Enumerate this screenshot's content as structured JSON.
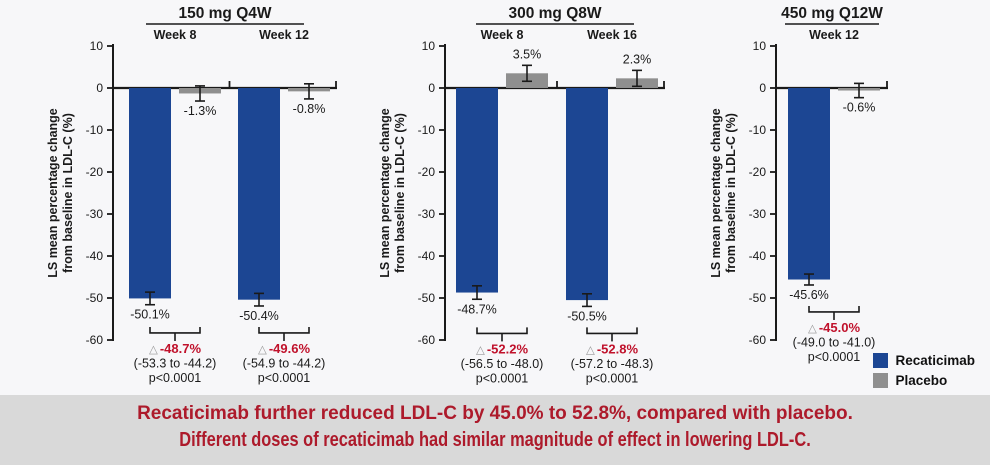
{
  "figure": {
    "caption": {
      "line1": "Recaticimab further reduced LDL-C by 45.0% to 52.8%, compared with placebo.",
      "line2": "Different doses of recaticimab had similar magnitude of effect in lowering LDL-C."
    }
  },
  "chart_data": {
    "type": "bar",
    "ylabel": [
      "LS mean percentage change",
      "from baseline in LDL-C (%)"
    ],
    "ylim": [
      10,
      -60
    ],
    "yticks": [
      10,
      0,
      -10,
      -20,
      -30,
      -40,
      -50,
      -60
    ],
    "grid": "off",
    "legend_position": "bottom-right",
    "colors": {
      "recaticimab": "#1C4693",
      "placebo": "#8F8F8F",
      "axis": "#1A1A1A",
      "diff_red": "#C0112B",
      "caption_red": "#AD1A2B",
      "caption_bg": "#D9D9D9",
      "triangle_gray": "#9A9A9A"
    },
    "legend": [
      {
        "label": "Recaticimab",
        "color": "#1C4693"
      },
      {
        "label": "Placebo",
        "color": "#8F8F8F"
      }
    ],
    "panels": [
      {
        "title": "150 mg Q4W",
        "groups": [
          {
            "week": "Week 8",
            "recaticimab": {
              "value": -50.1,
              "label": "-50.1%",
              "err": 1.5
            },
            "placebo": {
              "value": -1.3,
              "label": "-1.3%",
              "err": 1.8
            },
            "difference": {
              "delta": "-48.7%",
              "ci": "(-53.3 to -44.2)",
              "p": "p<0.0001"
            }
          },
          {
            "week": "Week 12",
            "recaticimab": {
              "value": -50.4,
              "label": "-50.4%",
              "err": 1.5
            },
            "placebo": {
              "value": -0.8,
              "label": "-0.8%",
              "err": 1.8
            },
            "difference": {
              "delta": "-49.6%",
              "ci": "(-54.9 to -44.2)",
              "p": "p<0.0001"
            }
          }
        ]
      },
      {
        "title": "300 mg Q8W",
        "groups": [
          {
            "week": "Week 8",
            "recaticimab": {
              "value": -48.7,
              "label": "-48.7%",
              "err": 1.6
            },
            "placebo": {
              "value": 3.5,
              "label": "3.5%",
              "err": 1.9
            },
            "difference": {
              "delta": "-52.2%",
              "ci": "(-56.5 to -48.0)",
              "p": "p<0.0001"
            }
          },
          {
            "week": "Week 16",
            "recaticimab": {
              "value": -50.5,
              "label": "-50.5%",
              "err": 1.5
            },
            "placebo": {
              "value": 2.3,
              "label": "2.3%",
              "err": 1.9
            },
            "difference": {
              "delta": "-52.8%",
              "ci": "(-57.2 to -48.3)",
              "p": "p<0.0001"
            }
          }
        ]
      },
      {
        "title": "450 mg Q12W",
        "groups": [
          {
            "week": "Week 12",
            "recaticimab": {
              "value": -45.6,
              "label": "-45.6%",
              "err": 1.3
            },
            "placebo": {
              "value": -0.6,
              "label": "-0.6%",
              "err": 1.7
            },
            "difference": {
              "delta": "-45.0%",
              "ci": "(-49.0 to -41.0)",
              "p": "p<0.0001"
            }
          }
        ]
      }
    ]
  }
}
